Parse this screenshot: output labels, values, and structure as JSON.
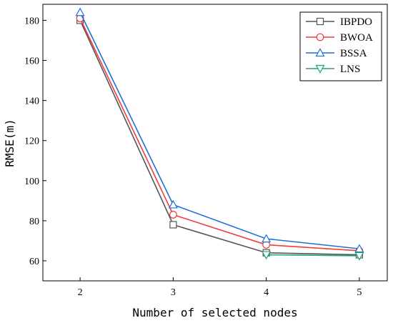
{
  "chart_data": {
    "type": "line",
    "x": [
      2,
      3,
      4,
      5
    ],
    "xlabel": "Number of selected nodes",
    "ylabel": "RMSE(m)",
    "xlim": [
      1.6,
      5.3
    ],
    "ylim": [
      50,
      188
    ],
    "xticks": [
      2,
      3,
      4,
      5
    ],
    "yticks": [
      60,
      80,
      100,
      120,
      140,
      160,
      180
    ],
    "legend_position": "top-right",
    "series": [
      {
        "name": "IBPDO",
        "values": [
          180,
          78,
          64,
          63
        ],
        "color": "#555555",
        "marker": "square"
      },
      {
        "name": "BWOA",
        "values": [
          181,
          83,
          68,
          65
        ],
        "color": "#f03c3c",
        "marker": "circle"
      },
      {
        "name": "BSSA",
        "values": [
          184,
          88,
          71,
          66
        ],
        "color": "#1f6fd8",
        "marker": "triangle-up"
      },
      {
        "name": "LNS",
        "values": [
          null,
          null,
          63,
          62.5
        ],
        "color": "#1aa86a",
        "marker": "triangle-down"
      }
    ]
  }
}
